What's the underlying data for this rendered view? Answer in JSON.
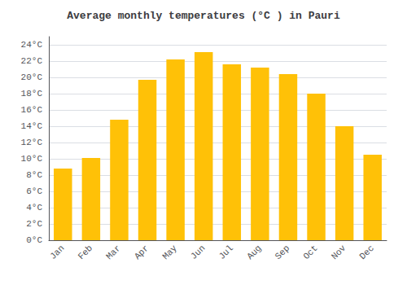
{
  "chart_data": {
    "type": "bar",
    "title": "Average monthly temperatures (°C ) in Pauri",
    "categories": [
      "Jan",
      "Feb",
      "Mar",
      "Apr",
      "May",
      "Jun",
      "Jul",
      "Aug",
      "Sep",
      "Oct",
      "Nov",
      "Dec"
    ],
    "values": [
      8.8,
      10.1,
      14.8,
      19.7,
      22.2,
      23.1,
      21.6,
      21.2,
      20.4,
      18.0,
      14.0,
      10.5
    ],
    "color": "#FFC107",
    "ylim": [
      0,
      25
    ],
    "yticks": [
      {
        "value": 0,
        "label": "0°C"
      },
      {
        "value": 2,
        "label": "2°C"
      },
      {
        "value": 4,
        "label": "4°C"
      },
      {
        "value": 6,
        "label": "6°C"
      },
      {
        "value": 8,
        "label": "8°C"
      },
      {
        "value": 10,
        "label": "10°C"
      },
      {
        "value": 12,
        "label": "12°C"
      },
      {
        "value": 14,
        "label": "14°C"
      },
      {
        "value": 16,
        "label": "16°C"
      },
      {
        "value": 18,
        "label": "18°C"
      },
      {
        "value": 20,
        "label": "20°C"
      },
      {
        "value": 22,
        "label": "22°C"
      },
      {
        "value": 24,
        "label": "24°C"
      }
    ],
    "grid": true
  }
}
